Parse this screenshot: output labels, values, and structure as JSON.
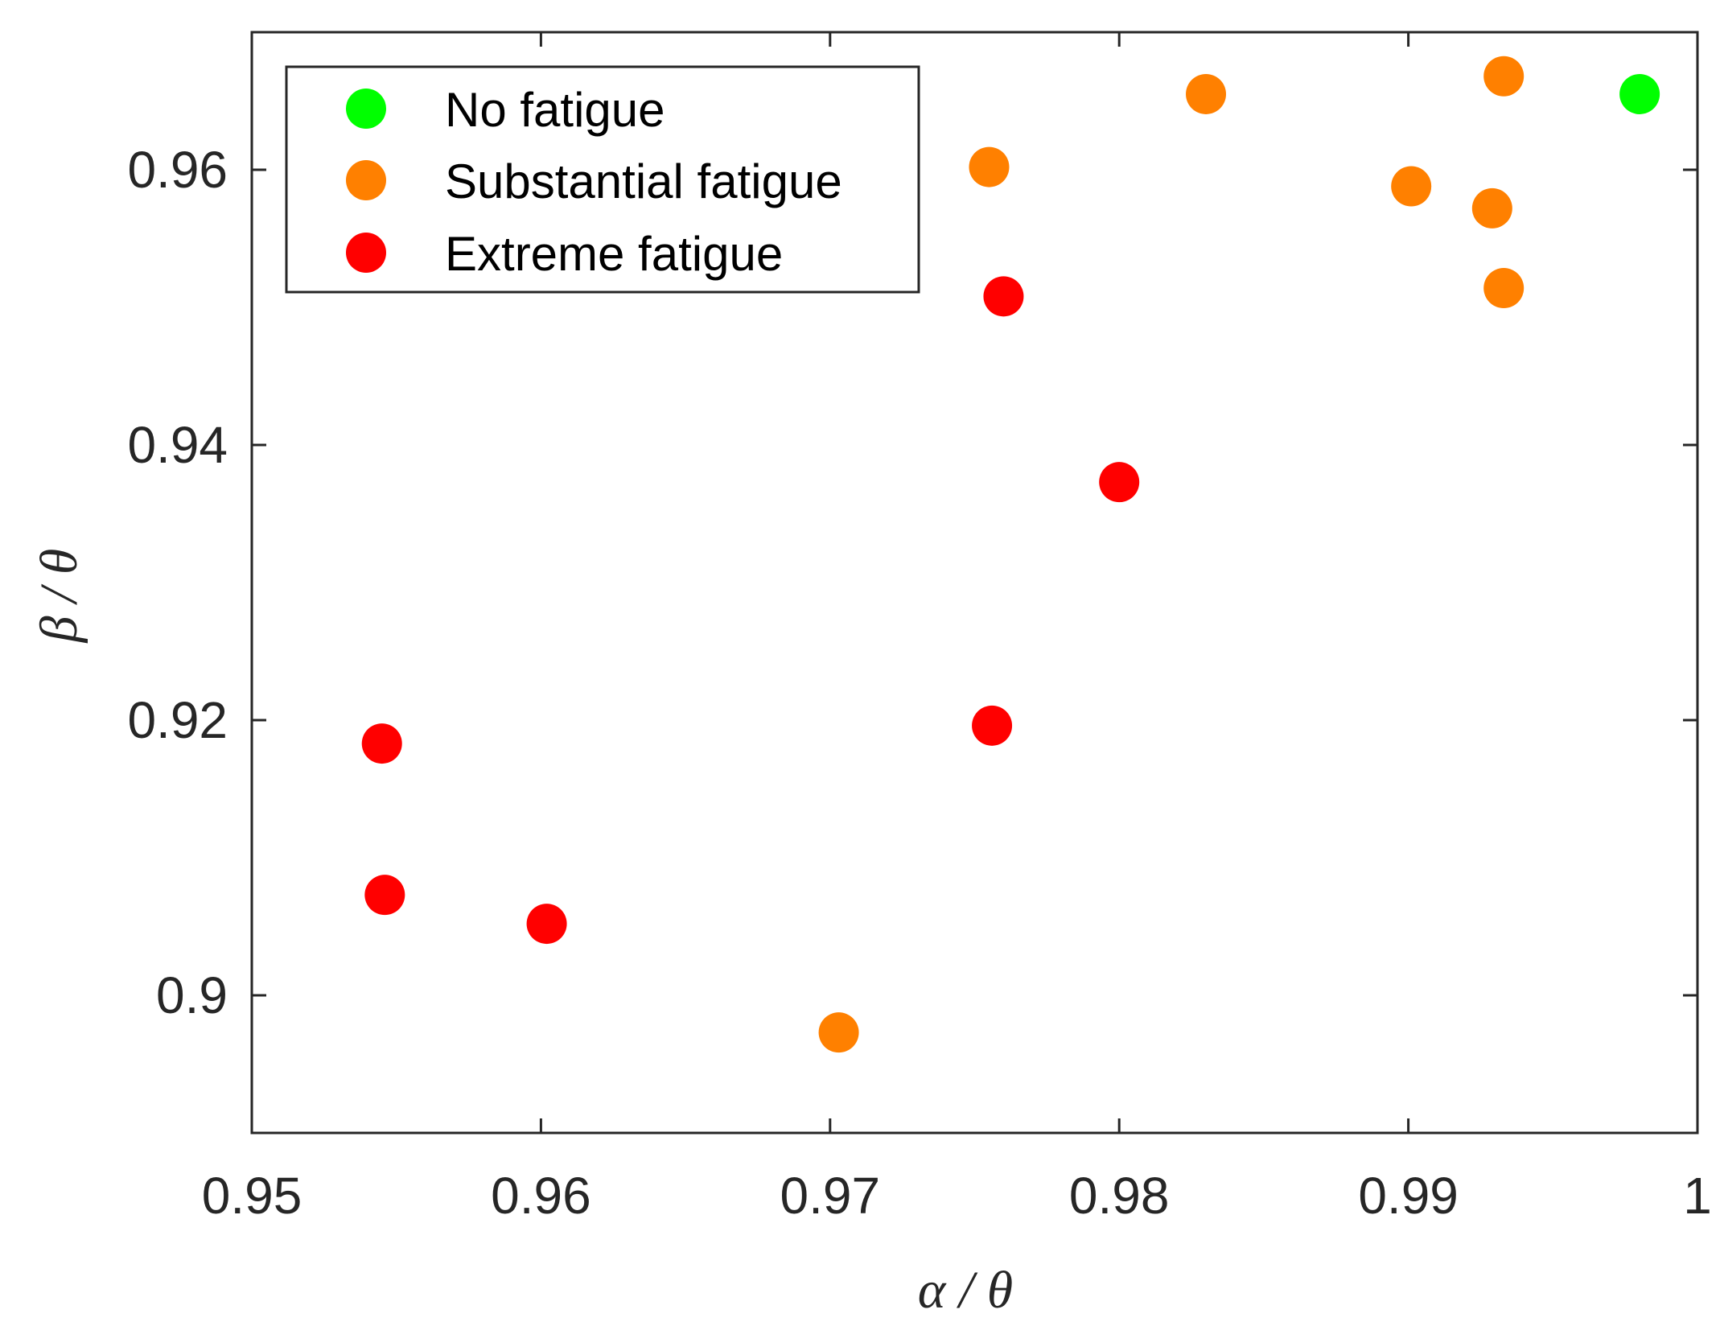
{
  "chart_data": {
    "type": "scatter",
    "title": "",
    "xlabel": "α / θ",
    "ylabel": "β / θ",
    "xlim": [
      0.95,
      1.0
    ],
    "ylim": [
      0.89,
      0.97
    ],
    "xticks": [
      0.95,
      0.96,
      0.97,
      0.98,
      0.99,
      1.0
    ],
    "xtick_labels": [
      "0.95",
      "0.96",
      "0.97",
      "0.98",
      "0.99",
      "1"
    ],
    "yticks": [
      0.9,
      0.92,
      0.94,
      0.96
    ],
    "ytick_labels": [
      "0.9",
      "0.92",
      "0.94",
      "0.96"
    ],
    "grid": false,
    "legend_position": "top-left",
    "series": [
      {
        "name": "No fatigue",
        "color": "#00ff00",
        "points": [
          [
            0.998,
            0.9655
          ]
        ]
      },
      {
        "name": "Substantial fatigue",
        "color": "#ff8000",
        "points": [
          [
            0.9755,
            0.9602
          ],
          [
            0.983,
            0.9655
          ],
          [
            0.9933,
            0.9668
          ],
          [
            0.9901,
            0.9588
          ],
          [
            0.9929,
            0.9572
          ],
          [
            0.9933,
            0.9514
          ],
          [
            0.9703,
            0.8973
          ]
        ]
      },
      {
        "name": "Extreme fatigue",
        "color": "#ff0000",
        "points": [
          [
            0.976,
            0.9508
          ],
          [
            0.98,
            0.9373
          ],
          [
            0.9756,
            0.9196
          ],
          [
            0.9545,
            0.9183
          ],
          [
            0.9546,
            0.9073
          ],
          [
            0.9602,
            0.9052
          ]
        ]
      }
    ]
  }
}
